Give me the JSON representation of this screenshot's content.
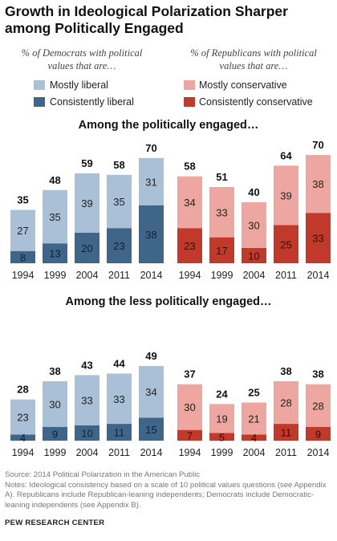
{
  "title": "Growth in Ideological Polarization Sharper among Politically Engaged",
  "dem_header": "% of Democrats with political values that are…",
  "rep_header": "% of Republicans with political values that are…",
  "legend": {
    "dem_mostly": "Mostly liberal",
    "dem_consistently": "Consistently liberal",
    "rep_mostly": "Mostly conservative",
    "rep_consistently": "Consistently conservative"
  },
  "sections": {
    "engaged": "Among the politically engaged…",
    "less_engaged": "Among the less politically engaged…"
  },
  "colors": {
    "dem_light": "#a9c0d6",
    "dem_dark": "#3f6688",
    "rep_light": "#eea7a0",
    "rep_dark": "#c0392b"
  },
  "source": "Source: 2014 Political Polarization in the American Public",
  "notes": "Notes: Ideological consistency based on a scale of 10 political values questions (see Appendix A). Republicans include Republican-leaning independents; Democrats include Democratic-leaning independents (see Appendix B).",
  "credit": "PEW RESEARCH CENTER",
  "chart_data": [
    {
      "type": "bar",
      "group": "Democrats",
      "section": "Among the politically engaged…",
      "categories": [
        "1994",
        "1999",
        "2004",
        "2011",
        "2014"
      ],
      "series": [
        {
          "name": "Consistently liberal",
          "values": [
            8,
            13,
            20,
            23,
            38
          ]
        },
        {
          "name": "Mostly liberal",
          "values": [
            27,
            35,
            39,
            35,
            31
          ]
        }
      ],
      "totals": [
        35,
        48,
        59,
        58,
        70
      ]
    },
    {
      "type": "bar",
      "group": "Republicans",
      "section": "Among the politically engaged…",
      "categories": [
        "1994",
        "1999",
        "2004",
        "2011",
        "2014"
      ],
      "series": [
        {
          "name": "Consistently conservative",
          "values": [
            23,
            17,
            10,
            25,
            33
          ]
        },
        {
          "name": "Mostly conservative",
          "values": [
            34,
            33,
            30,
            39,
            38
          ]
        }
      ],
      "totals": [
        58,
        51,
        40,
        64,
        70
      ]
    },
    {
      "type": "bar",
      "group": "Democrats",
      "section": "Among the less politically engaged…",
      "categories": [
        "1994",
        "1999",
        "2004",
        "2011",
        "2014"
      ],
      "series": [
        {
          "name": "Consistently liberal",
          "values": [
            4,
            9,
            10,
            11,
            15
          ]
        },
        {
          "name": "Mostly liberal",
          "values": [
            23,
            30,
            33,
            33,
            34
          ]
        }
      ],
      "totals": [
        28,
        38,
        43,
        44,
        49
      ]
    },
    {
      "type": "bar",
      "group": "Republicans",
      "section": "Among the less politically engaged…",
      "categories": [
        "1994",
        "1999",
        "2004",
        "2011",
        "2014"
      ],
      "series": [
        {
          "name": "Consistently conservative",
          "values": [
            7,
            5,
            4,
            11,
            9
          ]
        },
        {
          "name": "Mostly conservative",
          "values": [
            30,
            19,
            21,
            28,
            28
          ]
        }
      ],
      "totals": [
        37,
        24,
        25,
        38,
        38
      ]
    }
  ]
}
